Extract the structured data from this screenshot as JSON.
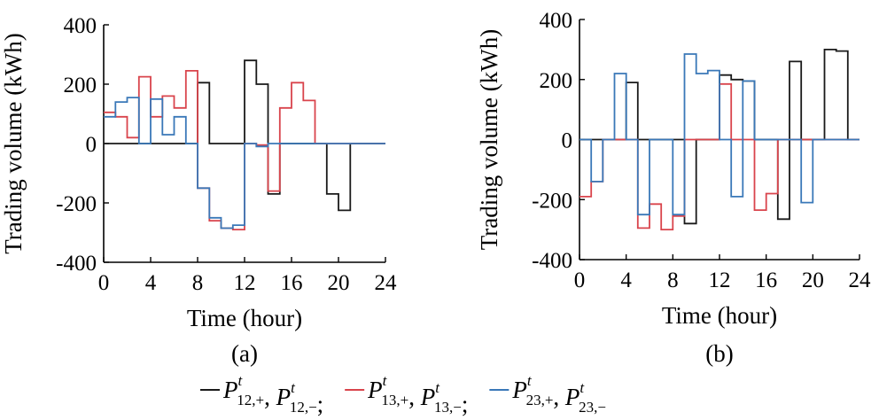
{
  "colors": {
    "black": "#1a1a1a",
    "red": "#d9444c",
    "blue": "#3a78b8"
  },
  "legend": {
    "entries": [
      {
        "color_key": "black",
        "a_sub": "12,+",
        "b_sub": "12,−",
        "sep": ";"
      },
      {
        "color_key": "red",
        "a_sub": "13,+",
        "b_sub": "13,−",
        "sep": ";"
      },
      {
        "color_key": "blue",
        "a_sub": "23,+",
        "b_sub": "23,−",
        "sep": ""
      }
    ],
    "symbol": "P",
    "sup": "t"
  },
  "chart_data": [
    {
      "type": "line",
      "panel_label": "(a)",
      "xlabel": "Time (hour)",
      "ylabel": "Trading volume (kWh)",
      "xlim": [
        0,
        24
      ],
      "ylim": [
        -400,
        400
      ],
      "xticks": [
        0,
        4,
        8,
        12,
        16,
        20,
        24
      ],
      "yticks": [
        400,
        200,
        0,
        -200,
        -400
      ],
      "step": true,
      "x": [
        1,
        2,
        3,
        4,
        5,
        6,
        7,
        8,
        9,
        10,
        11,
        12,
        13,
        14,
        15,
        16,
        17,
        18,
        19,
        20,
        21,
        22,
        23,
        24
      ],
      "series": [
        {
          "color_key": "black",
          "values": [
            0,
            0,
            0,
            0,
            0,
            0,
            0,
            0,
            205,
            0,
            0,
            0,
            280,
            200,
            -170,
            0,
            0,
            0,
            0,
            -170,
            -225,
            0,
            0,
            0
          ]
        },
        {
          "color_key": "red",
          "values": [
            105,
            90,
            20,
            225,
            90,
            160,
            120,
            245,
            -150,
            -260,
            -285,
            -290,
            0,
            -5,
            -160,
            120,
            205,
            145,
            0,
            0,
            0,
            0,
            0,
            0
          ]
        },
        {
          "color_key": "blue",
          "values": [
            90,
            140,
            155,
            0,
            150,
            30,
            90,
            0,
            -150,
            -250,
            -285,
            -275,
            0,
            -10,
            0,
            0,
            0,
            0,
            0,
            0,
            0,
            0,
            0,
            0
          ]
        }
      ]
    },
    {
      "type": "line",
      "panel_label": "(b)",
      "xlabel": "Time (hour)",
      "ylabel": "Trading volume (kWh)",
      "xlim": [
        0,
        24
      ],
      "ylim": [
        -400,
        400
      ],
      "xticks": [
        0,
        4,
        8,
        12,
        16,
        20,
        24
      ],
      "yticks": [
        400,
        200,
        0,
        -200,
        -400
      ],
      "step": true,
      "x": [
        1,
        2,
        3,
        4,
        5,
        6,
        7,
        8,
        9,
        10,
        11,
        12,
        13,
        14,
        15,
        16,
        17,
        18,
        19,
        20,
        21,
        22,
        23,
        24
      ],
      "series": [
        {
          "color_key": "black",
          "values": [
            0,
            0,
            0,
            0,
            190,
            0,
            0,
            0,
            0,
            -280,
            0,
            0,
            215,
            200,
            195,
            0,
            0,
            -265,
            260,
            0,
            0,
            300,
            295,
            0
          ]
        },
        {
          "color_key": "red",
          "values": [
            -190,
            -140,
            0,
            0,
            0,
            -295,
            -215,
            -300,
            -255,
            0,
            0,
            0,
            185,
            0,
            0,
            -235,
            -180,
            0,
            0,
            0,
            0,
            0,
            0,
            0
          ]
        },
        {
          "color_key": "blue",
          "values": [
            0,
            -140,
            0,
            220,
            0,
            -250,
            0,
            0,
            -250,
            285,
            220,
            230,
            0,
            -190,
            195,
            0,
            0,
            0,
            0,
            -210,
            0,
            0,
            0,
            0
          ]
        }
      ]
    }
  ]
}
